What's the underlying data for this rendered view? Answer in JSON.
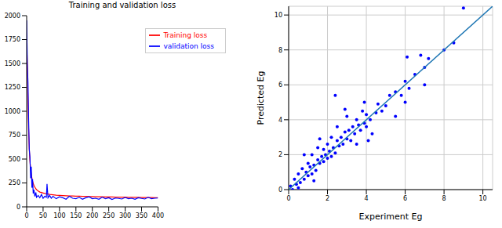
{
  "chart_data": [
    {
      "type": "line",
      "title": "Training and validation loss",
      "x": [
        0,
        2,
        4,
        6,
        8,
        10,
        12,
        14,
        16,
        18,
        20,
        22,
        25,
        28,
        30,
        35,
        40,
        45,
        50,
        55,
        60,
        62,
        65,
        70,
        75,
        80,
        90,
        100,
        110,
        120,
        130,
        140,
        150,
        160,
        170,
        180,
        190,
        200,
        210,
        220,
        230,
        240,
        250,
        260,
        270,
        280,
        290,
        300,
        310,
        320,
        330,
        340,
        350,
        360,
        370,
        380,
        390,
        400
      ],
      "series": [
        {
          "name": "Training loss",
          "color": "#ff0000",
          "values": [
            1750,
            1450,
            1100,
            800,
            600,
            480,
            400,
            340,
            300,
            270,
            245,
            225,
            205,
            190,
            180,
            165,
            155,
            150,
            145,
            140,
            138,
            136,
            134,
            130,
            128,
            126,
            122,
            120,
            118,
            116,
            114,
            113,
            112,
            111,
            110,
            109,
            108,
            107,
            106,
            106,
            105,
            104,
            104,
            103,
            102,
            102,
            101,
            101,
            100,
            100,
            99,
            99,
            98,
            98,
            97,
            97,
            96,
            96
          ]
        },
        {
          "name": "validation loss",
          "color": "#0000ff",
          "values": [
            1950,
            1500,
            1300,
            900,
            600,
            520,
            300,
            420,
            200,
            290,
            140,
            180,
            110,
            150,
            100,
            120,
            95,
            130,
            90,
            110,
            100,
            240,
            95,
            120,
            90,
            110,
            85,
            105,
            95,
            80,
            110,
            90,
            85,
            100,
            80,
            95,
            105,
            85,
            90,
            80,
            100,
            85,
            95,
            78,
            92,
            88,
            82,
            98,
            85,
            90,
            80,
            95,
            88,
            82,
            100,
            85,
            90,
            92
          ]
        }
      ],
      "xlim": [
        0,
        400
      ],
      "xticks": [
        0,
        50,
        100,
        150,
        200,
        250,
        300,
        350,
        400
      ],
      "ylim": [
        0,
        2000
      ],
      "yticks": [
        0,
        250,
        500,
        750,
        1000,
        1250,
        1500,
        1750,
        2000
      ],
      "grid": false,
      "legend": "upper right"
    },
    {
      "type": "scatter",
      "x_label": "Experiment Eg",
      "y_label": "Predicted Eg",
      "series": [
        {
          "type": "scatter",
          "color": "#0000ff",
          "marker": "circle",
          "x": [
            0.1,
            0.2,
            0.3,
            0.4,
            0.5,
            0.6,
            0.7,
            0.8,
            0.9,
            1.0,
            1.0,
            1.1,
            1.2,
            1.2,
            1.3,
            1.4,
            1.5,
            1.5,
            1.6,
            1.7,
            1.8,
            1.8,
            1.9,
            2.0,
            2.0,
            2.1,
            2.2,
            2.2,
            2.3,
            2.4,
            2.5,
            2.5,
            2.6,
            2.7,
            2.8,
            2.9,
            3.0,
            3.0,
            3.1,
            3.2,
            3.3,
            3.4,
            3.5,
            3.5,
            3.6,
            3.7,
            3.8,
            3.9,
            4.0,
            4.0,
            4.2,
            4.3,
            4.5,
            4.6,
            4.8,
            5.0,
            5.2,
            5.5,
            5.5,
            5.8,
            6.0,
            6.0,
            6.1,
            6.2,
            6.5,
            6.8,
            7.0,
            7.0,
            7.2,
            8.0,
            8.5,
            9.0,
            1.6,
            2.4,
            0.8,
            3.9,
            2.9,
            4.1,
            1.3,
            0.5
          ],
          "values": [
            0.2,
            0.0,
            0.6,
            0.3,
            0.9,
            0.4,
            1.2,
            0.6,
            1.0,
            0.8,
            1.5,
            1.3,
            0.9,
            2.0,
            1.4,
            1.1,
            1.7,
            2.4,
            1.5,
            1.9,
            1.6,
            2.3,
            2.0,
            1.8,
            2.6,
            2.2,
            1.9,
            3.0,
            2.4,
            2.1,
            2.8,
            3.6,
            2.5,
            3.0,
            2.6,
            3.3,
            2.9,
            4.2,
            3.4,
            2.8,
            3.6,
            3.2,
            4.0,
            2.6,
            3.7,
            3.4,
            4.5,
            3.8,
            3.6,
            4.3,
            4.0,
            3.2,
            4.4,
            4.9,
            4.5,
            4.8,
            5.4,
            4.2,
            5.6,
            5.4,
            6.2,
            5.0,
            7.6,
            5.8,
            6.6,
            7.7,
            7.0,
            6.0,
            7.5,
            8.0,
            8.4,
            10.4,
            2.9,
            5.4,
            2.0,
            5.0,
            4.6,
            2.8,
            0.5,
            0.1
          ]
        },
        {
          "type": "line",
          "color": "#1f77b4",
          "x": [
            0,
            10.5
          ],
          "values": [
            0,
            10.5
          ]
        }
      ],
      "xlim": [
        0,
        10.5
      ],
      "xticks": [
        0,
        2,
        4,
        6,
        8,
        10
      ],
      "ylim": [
        0,
        10.5
      ],
      "yticks": [
        0,
        2,
        4,
        6,
        8,
        10
      ],
      "grid": true
    }
  ]
}
